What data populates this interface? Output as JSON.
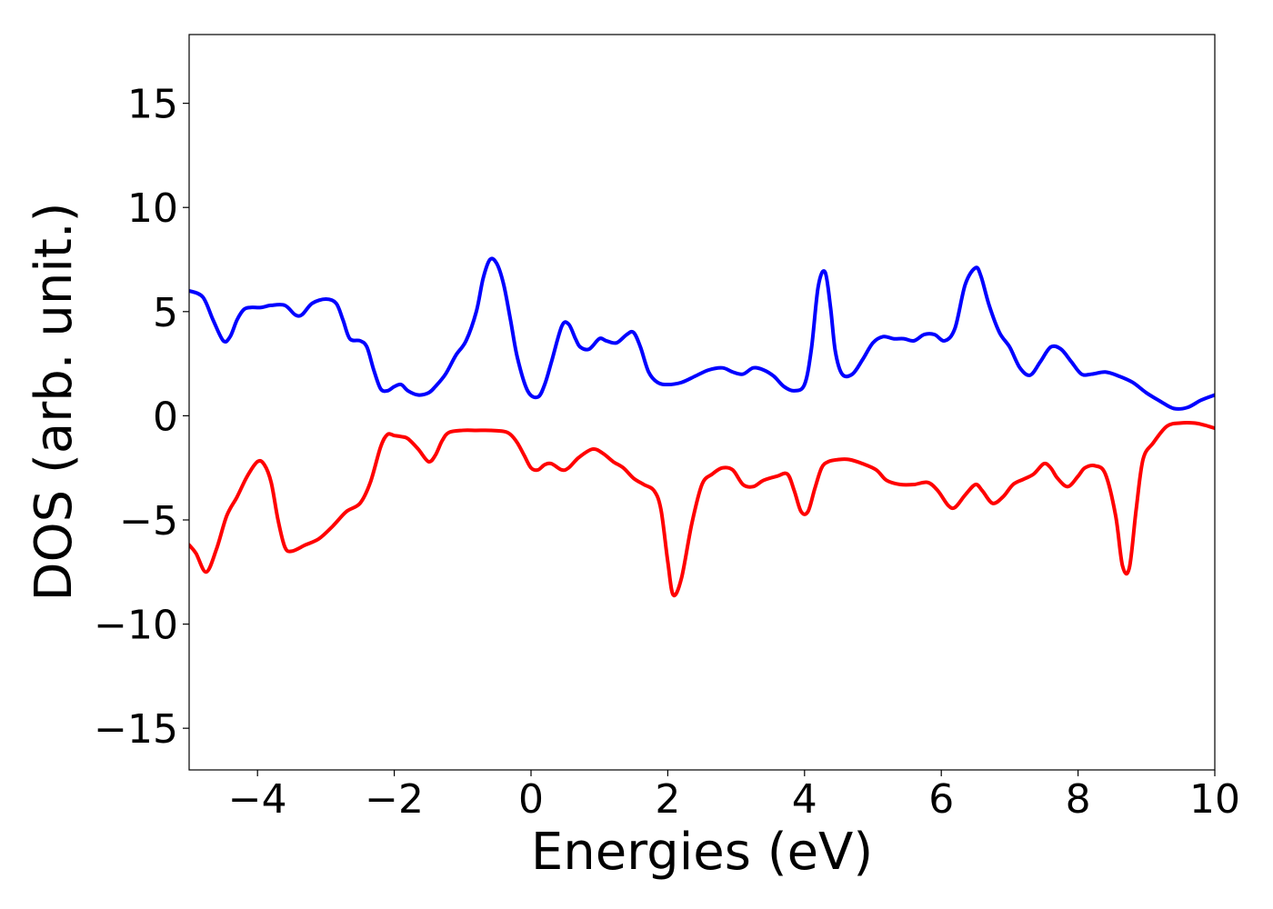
{
  "chart_data": {
    "type": "line",
    "title": "",
    "xlabel": "Energies (eV)",
    "ylabel": "DOS (arb. unit.)",
    "xlim": [
      -5,
      10
    ],
    "ylim": [
      -17,
      18.3
    ],
    "xticks": [
      -4,
      -2,
      0,
      2,
      4,
      6,
      8,
      10
    ],
    "xtick_labels": [
      "−4",
      "−2",
      "0",
      "2",
      "4",
      "6",
      "8",
      "10"
    ],
    "yticks": [
      15,
      10,
      5,
      0,
      -5,
      -10,
      -15
    ],
    "ytick_labels": [
      "15",
      "10",
      "5",
      "0",
      "−5",
      "−10",
      "−15"
    ],
    "grid": false,
    "legend": "none",
    "series": [
      {
        "color": "#0000ff",
        "x": [
          -5.0,
          -4.8,
          -4.65,
          -4.5,
          -4.4,
          -4.3,
          -4.2,
          -4.1,
          -3.95,
          -3.8,
          -3.6,
          -3.45,
          -3.35,
          -3.2,
          -3.0,
          -2.85,
          -2.75,
          -2.65,
          -2.5,
          -2.4,
          -2.3,
          -2.2,
          -2.1,
          -2.0,
          -1.9,
          -1.8,
          -1.65,
          -1.5,
          -1.4,
          -1.25,
          -1.1,
          -0.95,
          -0.8,
          -0.7,
          -0.6,
          -0.5,
          -0.4,
          -0.3,
          -0.2,
          -0.05,
          0.1,
          0.2,
          0.3,
          0.45,
          0.55,
          0.65,
          0.72,
          0.85,
          1.0,
          1.1,
          1.25,
          1.4,
          1.5,
          1.6,
          1.72,
          1.85,
          2.0,
          2.2,
          2.4,
          2.6,
          2.8,
          2.95,
          3.1,
          3.25,
          3.4,
          3.55,
          3.7,
          3.85,
          4.0,
          4.1,
          4.2,
          4.3,
          4.38,
          4.45,
          4.55,
          4.7,
          4.85,
          5.0,
          5.15,
          5.3,
          5.45,
          5.6,
          5.75,
          5.9,
          6.05,
          6.2,
          6.35,
          6.5,
          6.58,
          6.7,
          6.85,
          7.0,
          7.15,
          7.3,
          7.45,
          7.6,
          7.75,
          7.9,
          8.05,
          8.2,
          8.4,
          8.6,
          8.8,
          9.0,
          9.2,
          9.4,
          9.6,
          9.8,
          10.0
        ],
        "values": [
          6.0,
          5.7,
          4.6,
          3.6,
          3.8,
          4.6,
          5.1,
          5.2,
          5.2,
          5.3,
          5.3,
          4.85,
          4.85,
          5.4,
          5.6,
          5.4,
          4.6,
          3.7,
          3.6,
          3.3,
          2.2,
          1.3,
          1.2,
          1.4,
          1.5,
          1.2,
          1.0,
          1.1,
          1.4,
          2.0,
          2.9,
          3.6,
          5.0,
          6.6,
          7.5,
          7.3,
          6.3,
          4.6,
          2.8,
          1.2,
          0.9,
          1.5,
          2.6,
          4.3,
          4.4,
          3.7,
          3.3,
          3.2,
          3.7,
          3.6,
          3.5,
          3.9,
          4.0,
          3.3,
          2.1,
          1.6,
          1.5,
          1.6,
          1.9,
          2.2,
          2.3,
          2.1,
          2.0,
          2.3,
          2.2,
          1.9,
          1.4,
          1.2,
          1.5,
          3.2,
          6.2,
          6.9,
          5.2,
          3.1,
          2.0,
          2.0,
          2.7,
          3.5,
          3.8,
          3.7,
          3.7,
          3.6,
          3.9,
          3.9,
          3.6,
          4.2,
          6.3,
          7.1,
          6.7,
          5.3,
          4.0,
          3.3,
          2.3,
          1.95,
          2.6,
          3.3,
          3.2,
          2.6,
          2.0,
          2.0,
          2.1,
          1.9,
          1.6,
          1.1,
          0.7,
          0.35,
          0.4,
          0.75,
          1.0
        ]
      },
      {
        "color": "#ff0000",
        "x": [
          -5.0,
          -4.9,
          -4.75,
          -4.6,
          -4.45,
          -4.3,
          -4.15,
          -4.0,
          -3.9,
          -3.8,
          -3.7,
          -3.6,
          -3.5,
          -3.3,
          -3.1,
          -2.9,
          -2.7,
          -2.5,
          -2.35,
          -2.2,
          -2.1,
          -2.0,
          -1.9,
          -1.8,
          -1.65,
          -1.5,
          -1.4,
          -1.3,
          -1.2,
          -1.0,
          -0.8,
          -0.6,
          -0.4,
          -0.3,
          -0.2,
          -0.1,
          0.0,
          0.1,
          0.2,
          0.3,
          0.45,
          0.55,
          0.7,
          0.9,
          1.05,
          1.2,
          1.35,
          1.5,
          1.65,
          1.8,
          1.9,
          2.0,
          2.08,
          2.2,
          2.35,
          2.5,
          2.65,
          2.8,
          2.95,
          3.1,
          3.25,
          3.4,
          3.6,
          3.75,
          3.85,
          3.95,
          4.05,
          4.15,
          4.25,
          4.35,
          4.5,
          4.65,
          4.85,
          5.05,
          5.2,
          5.4,
          5.6,
          5.8,
          5.95,
          6.1,
          6.2,
          6.35,
          6.5,
          6.6,
          6.75,
          6.9,
          7.05,
          7.2,
          7.35,
          7.5,
          7.6,
          7.7,
          7.85,
          8.0,
          8.1,
          8.25,
          8.4,
          8.55,
          8.65,
          8.75,
          8.85,
          8.95,
          9.1,
          9.3,
          9.5,
          9.7,
          9.85,
          10.0
        ],
        "values": [
          -6.2,
          -6.6,
          -7.5,
          -6.4,
          -4.8,
          -3.9,
          -2.9,
          -2.2,
          -2.35,
          -3.2,
          -5.0,
          -6.3,
          -6.5,
          -6.2,
          -5.9,
          -5.3,
          -4.6,
          -4.2,
          -3.2,
          -1.5,
          -0.9,
          -0.95,
          -1.0,
          -1.1,
          -1.6,
          -2.2,
          -1.9,
          -1.2,
          -0.8,
          -0.7,
          -0.7,
          -0.7,
          -0.75,
          -0.9,
          -1.3,
          -1.9,
          -2.5,
          -2.6,
          -2.35,
          -2.3,
          -2.6,
          -2.5,
          -2.0,
          -1.6,
          -1.8,
          -2.2,
          -2.5,
          -3.0,
          -3.3,
          -3.6,
          -4.5,
          -7.0,
          -8.6,
          -7.8,
          -5.2,
          -3.3,
          -2.8,
          -2.5,
          -2.6,
          -3.3,
          -3.4,
          -3.1,
          -2.9,
          -2.8,
          -3.6,
          -4.6,
          -4.6,
          -3.5,
          -2.5,
          -2.2,
          -2.1,
          -2.1,
          -2.3,
          -2.6,
          -3.1,
          -3.3,
          -3.3,
          -3.2,
          -3.6,
          -4.3,
          -4.4,
          -3.8,
          -3.3,
          -3.6,
          -4.2,
          -3.9,
          -3.3,
          -3.05,
          -2.8,
          -2.3,
          -2.5,
          -3.0,
          -3.4,
          -2.9,
          -2.5,
          -2.4,
          -2.8,
          -4.8,
          -7.2,
          -7.3,
          -4.5,
          -2.1,
          -1.3,
          -0.5,
          -0.35,
          -0.35,
          -0.45,
          -0.6
        ]
      }
    ]
  }
}
